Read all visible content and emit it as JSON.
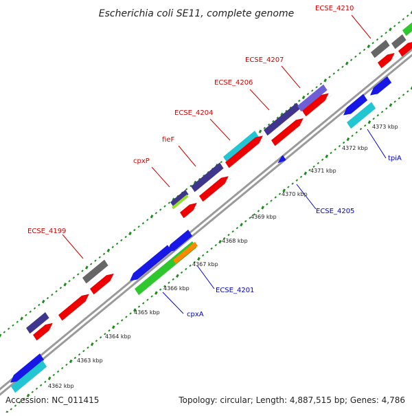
{
  "title": "Escherichia coli SE11, complete genome",
  "footer": {
    "accession": "Accession: NC_011415",
    "summary": "Topology: circular; Length: 4,887,515 bp; Genes: 4,786"
  },
  "colors": {
    "label_forward": "#cc0000",
    "label_reverse": "#0000cc",
    "backbone": "#9a9a9a",
    "tick": "#1e8b1e",
    "gene_blue": "#1818e6",
    "gene_red": "#ee0000",
    "gene_indigo": "#40358c",
    "gene_gray": "#666666",
    "gene_cyan": "#22c6d2",
    "gene_green": "#2ec82e",
    "gene_orange": "#ff8a00",
    "gene_slate": "#6f5fd6",
    "gene_lime": "#9adf2c"
  },
  "scale_ticks": [
    {
      "label": "4362 kbp"
    },
    {
      "label": "4363 kbp"
    },
    {
      "label": "4364 kbp"
    },
    {
      "label": "4365 kbp"
    },
    {
      "label": "4366 kbp"
    },
    {
      "label": "4367 kbp"
    },
    {
      "label": "4368 kbp"
    },
    {
      "label": "4369 kbp"
    },
    {
      "label": "4370 kbp"
    },
    {
      "label": "4371 kbp"
    },
    {
      "label": "4372 kbp"
    },
    {
      "label": "4373 kbp"
    }
  ],
  "gene_labels": [
    {
      "text": "ECSE_4210",
      "strand": "forward"
    },
    {
      "text": "ECSE_4207",
      "strand": "forward"
    },
    {
      "text": "ECSE_4206",
      "strand": "forward"
    },
    {
      "text": "ECSE_4204",
      "strand": "forward"
    },
    {
      "text": "fieF",
      "strand": "forward"
    },
    {
      "text": "cpxP",
      "strand": "forward"
    },
    {
      "text": "ECSE_4199",
      "strand": "forward"
    },
    {
      "text": "tpiA",
      "strand": "reverse"
    },
    {
      "text": "ECSE_4205",
      "strand": "reverse"
    },
    {
      "text": "ECSE_4201",
      "strand": "reverse"
    },
    {
      "text": "cpxA",
      "strand": "reverse"
    }
  ]
}
